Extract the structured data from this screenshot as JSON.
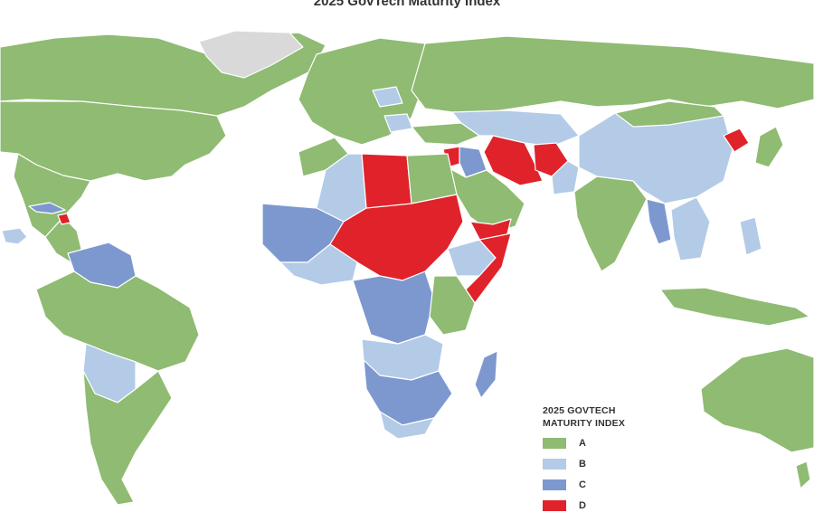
{
  "map": {
    "title": "2025 GovTech Maturity Index",
    "colors": {
      "A": "#8fbb72",
      "B": "#b3cbe6",
      "C": "#7d98cf",
      "D": "#e0222a",
      "no_data": "#d9d9d9"
    }
  },
  "legend": {
    "title_line1": "2025 GOVTECH",
    "title_line2": "MATURITY INDEX",
    "items": [
      {
        "label": "A",
        "color": "#8fbb72"
      },
      {
        "label": "B",
        "color": "#b3cbe6"
      },
      {
        "label": "C",
        "color": "#7d98cf"
      },
      {
        "label": "D",
        "color": "#e0222a"
      }
    ]
  }
}
